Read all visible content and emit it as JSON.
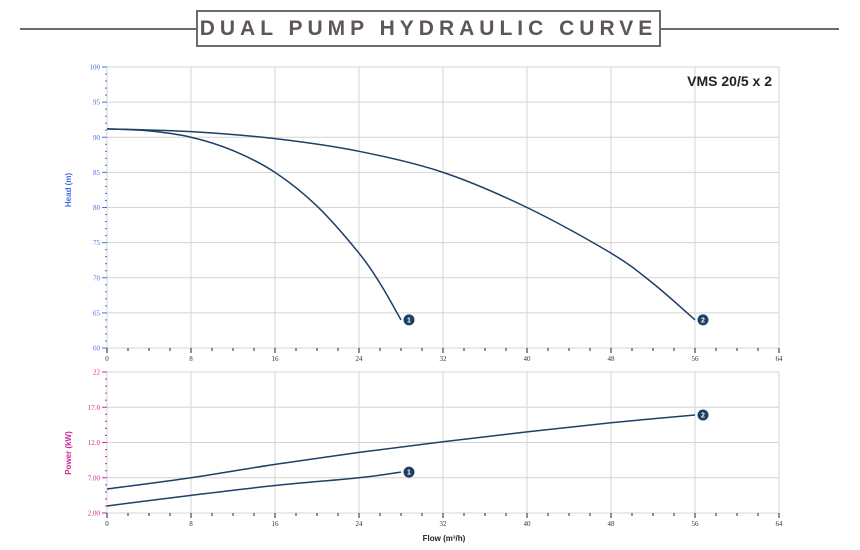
{
  "title": "DUAL PUMP HYDRAULIC CURVE",
  "model": "VMS 20/5 x 2",
  "colors": {
    "curve": "#1f3f66",
    "head_axis": "#4a6ee0",
    "power_axis": "#d0289a",
    "grid": "#d4d4d4",
    "marker": "#1f3f66"
  },
  "chart_data": [
    {
      "type": "line",
      "name": "head",
      "ylabel": "Head (m)",
      "xlim": [
        0,
        64
      ],
      "ylim": [
        60,
        100
      ],
      "x_ticks": [
        "0",
        "8",
        "16",
        "24",
        "32",
        "40",
        "48",
        "56",
        "64"
      ],
      "y_ticks": [
        "60",
        "65",
        "70",
        "75",
        "80",
        "85",
        "90",
        "95",
        "100"
      ],
      "grid": true,
      "series": [
        {
          "name": "1",
          "x": [
            0,
            4,
            8,
            12,
            16,
            20,
            24,
            26,
            28
          ],
          "y": [
            91.2,
            90.9,
            90.0,
            88.1,
            85.0,
            80.2,
            73.5,
            69.2,
            64.0
          ]
        },
        {
          "name": "2",
          "x": [
            0,
            8,
            16,
            24,
            32,
            40,
            48,
            52,
            56
          ],
          "y": [
            91.2,
            90.8,
            89.8,
            88.0,
            85.0,
            80.0,
            73.5,
            69.2,
            64.0
          ]
        }
      ]
    },
    {
      "type": "line",
      "name": "power",
      "xlabel": "Flow (m³/h)",
      "ylabel": "Power (kW)",
      "xlim": [
        0,
        64
      ],
      "ylim": [
        2,
        22
      ],
      "x_ticks": [
        "0",
        "8",
        "16",
        "24",
        "32",
        "40",
        "48",
        "56",
        "64"
      ],
      "y_ticks": [
        "2.00",
        "7.00",
        "12.0",
        "17.0",
        "22"
      ],
      "grid": true,
      "series": [
        {
          "name": "1",
          "x": [
            0,
            8,
            16,
            24,
            28
          ],
          "y": [
            3.0,
            4.5,
            5.9,
            7.0,
            7.8
          ]
        },
        {
          "name": "2",
          "x": [
            0,
            8,
            16,
            24,
            32,
            40,
            48,
            56
          ],
          "y": [
            5.4,
            7.0,
            8.9,
            10.6,
            12.1,
            13.5,
            14.8,
            15.9
          ]
        }
      ]
    }
  ]
}
